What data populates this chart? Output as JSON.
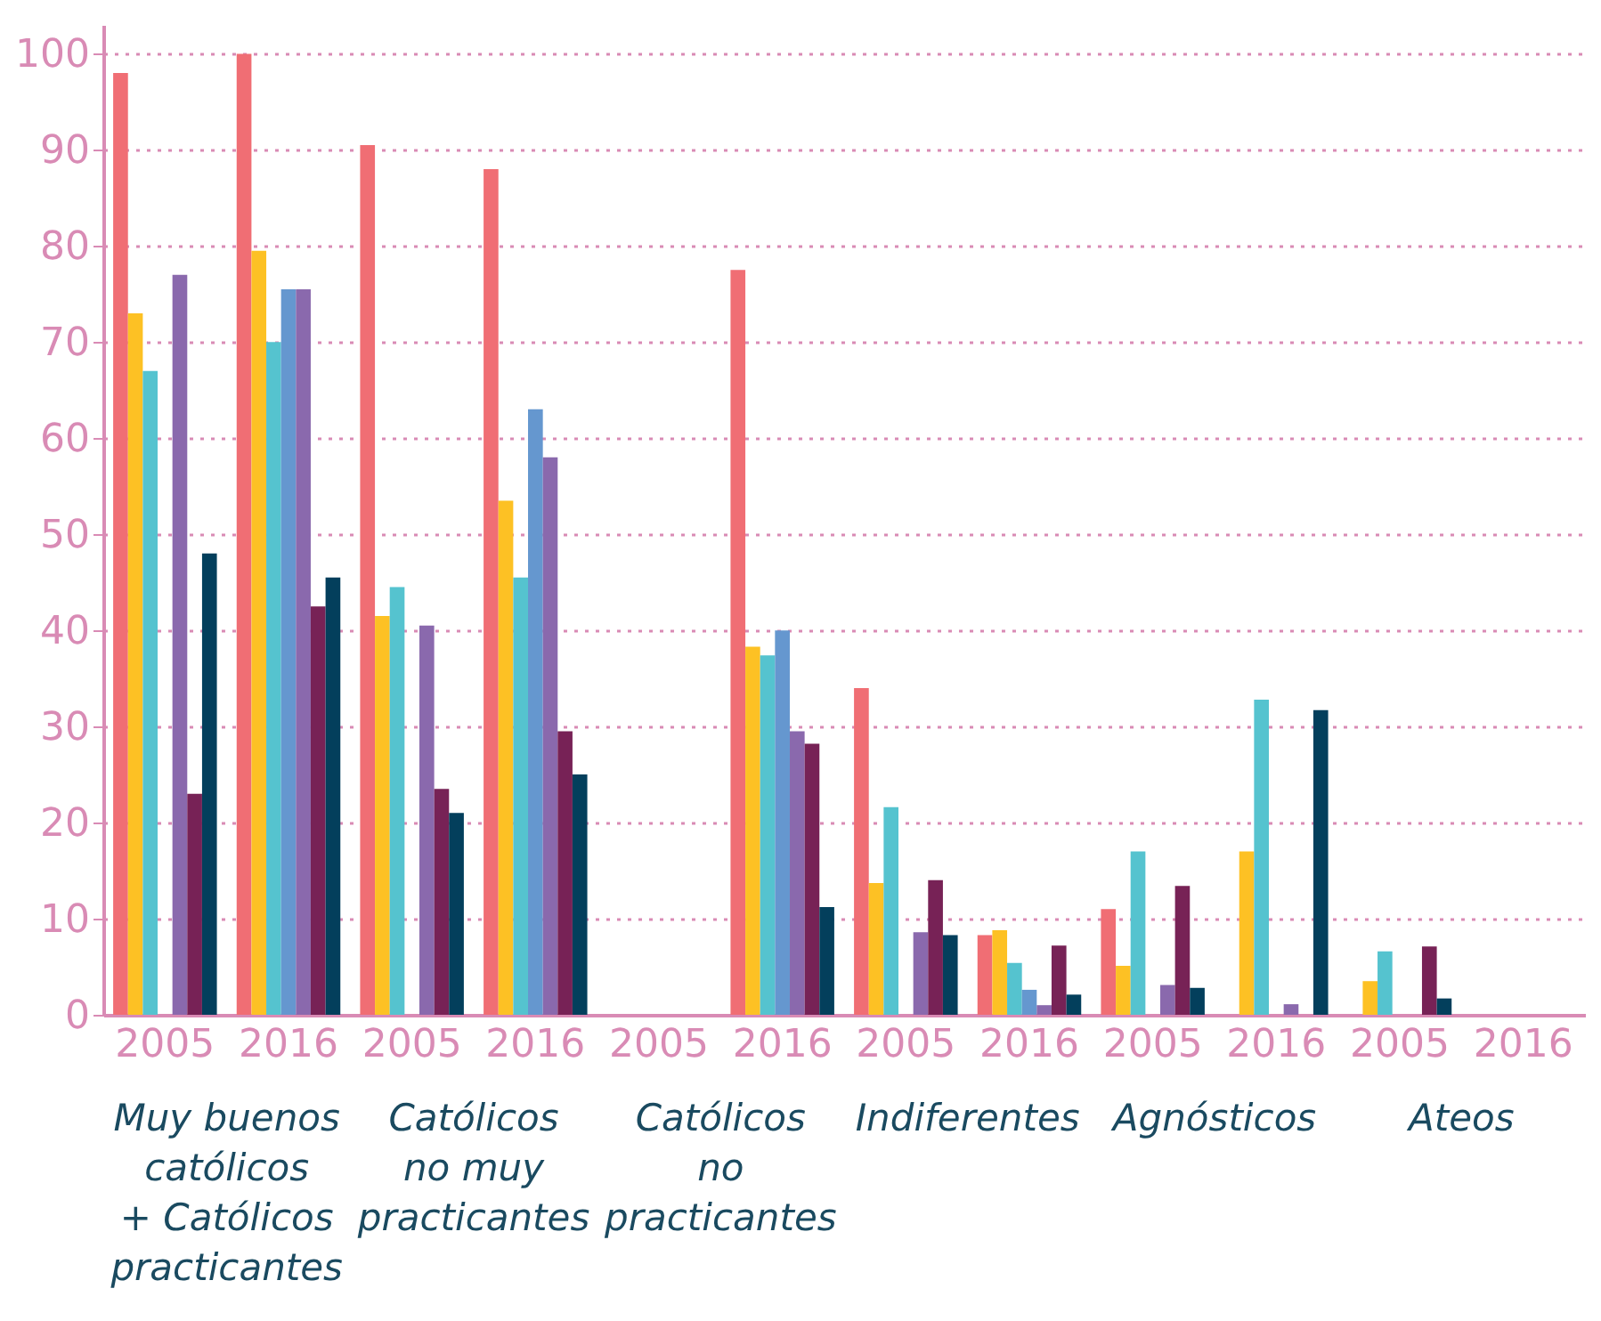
{
  "chart_data": {
    "type": "bar",
    "categories": [
      "2005",
      "2016",
      "2005",
      "2016",
      "2005",
      "2016",
      "2005",
      "2016",
      "2005",
      "2016",
      "2005",
      "2016"
    ],
    "annotations": [
      "Muy buenos católicos + Católicos practicantes",
      "Católicos no muy practicantes",
      "Católicos no practicantes",
      "Indiferentes",
      "Agnósticos",
      "Ateos"
    ],
    "series": [
      {
        "color": "#f06e74",
        "values": [
          98,
          100,
          90.5,
          88,
          null,
          77.5,
          34,
          8.3,
          11,
          null,
          null,
          null
        ]
      },
      {
        "color": "#fdc124",
        "values": [
          73,
          79.5,
          41.5,
          53.5,
          null,
          38.3,
          13.7,
          8.8,
          5.1,
          17,
          3.5,
          null
        ]
      },
      {
        "color": "#55c3cf",
        "values": [
          67,
          70,
          44.5,
          45.5,
          null,
          37.4,
          21.6,
          5.4,
          17,
          32.8,
          6.6,
          null
        ]
      },
      {
        "color": "#6597cf",
        "values": [
          null,
          75.5,
          null,
          63,
          null,
          40,
          null,
          2.6,
          null,
          null,
          null,
          null
        ]
      },
      {
        "color": "#8a69ad",
        "values": [
          77,
          75.5,
          40.5,
          58,
          null,
          29.5,
          8.6,
          1,
          3.1,
          1.1,
          null,
          null
        ]
      },
      {
        "color": "#772256",
        "values": [
          23,
          42.5,
          23.5,
          29.5,
          null,
          28.2,
          14,
          7.2,
          13.4,
          null,
          7.1,
          null
        ]
      },
      {
        "color": "#033f5c",
        "values": [
          48,
          45.5,
          21,
          25,
          null,
          11.2,
          8.3,
          2.1,
          2.8,
          31.7,
          1.7,
          null
        ]
      }
    ],
    "ylim": [
      0,
      103
    ],
    "yticks": [
      0,
      10,
      20,
      30,
      40,
      50,
      60,
      70,
      80,
      90,
      100
    ],
    "grid": "y"
  }
}
